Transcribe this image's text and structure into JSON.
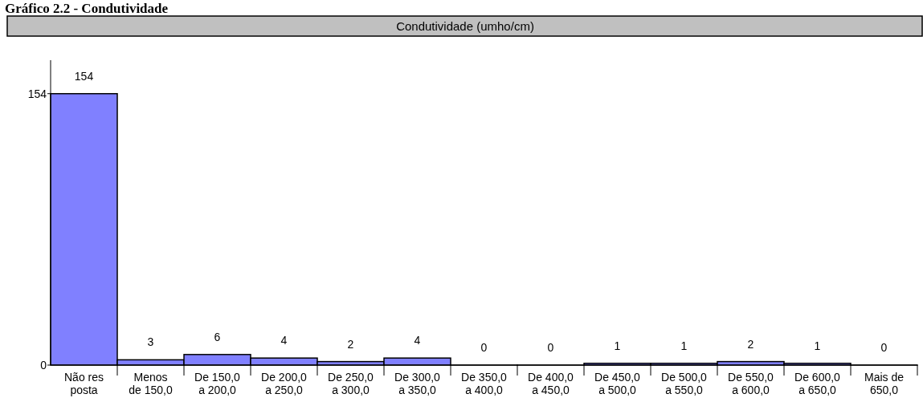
{
  "chart_data": {
    "type": "bar",
    "title": "Gráfico 2.2 - Condutividade",
    "subtitle": "Condutividade (umho/cm)",
    "categories": [
      "Não res\nposta",
      "Menos\nde 150,0",
      "De 150,0\na 200,0",
      "De 200,0\na 250,0",
      "De 250,0\na 300,0",
      "De 300,0\na 350,0",
      "De 350,0\na 400,0",
      "De 400,0\na 450,0",
      "De 450,0\na 500,0",
      "De 500,0\na 550,0",
      "De 550,0\na 600,0",
      "De 600,0\na 650,0",
      "Mais de\n650,0"
    ],
    "values": [
      154,
      3,
      6,
      4,
      2,
      4,
      0,
      0,
      1,
      1,
      2,
      1,
      0
    ],
    "color": "#8080ff",
    "ylim": [
      0,
      173
    ],
    "yticks": [
      0,
      154
    ],
    "data_labels": true,
    "grid": false
  }
}
